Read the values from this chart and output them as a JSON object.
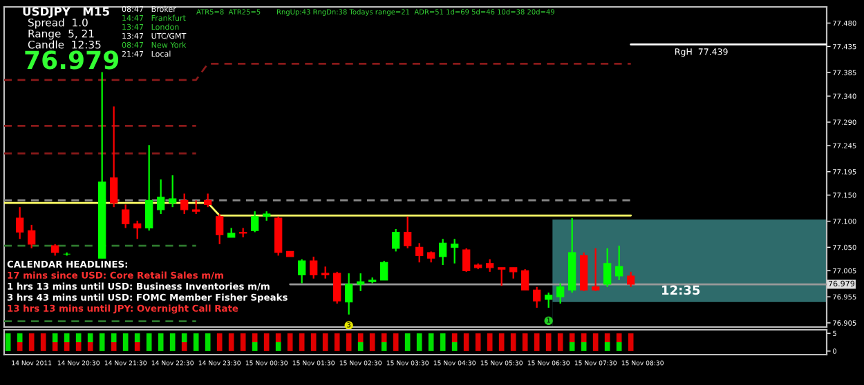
{
  "chart_data": [
    {
      "type": "candlestick",
      "x": [
        "2011-11-14T19:15",
        "2011-11-14T19:30",
        "2011-11-14T20:00",
        "2011-11-14T20:15",
        "2011-11-14T21:00",
        "2011-11-14T21:15",
        "2011-11-14T21:30",
        "2011-11-14T21:45",
        "2011-11-14T22:00",
        "2011-11-14T22:15",
        "2011-11-14T22:30",
        "2011-11-14T22:45",
        "2011-11-14T23:00",
        "2011-11-14T23:15",
        "2011-11-14T23:30",
        "2011-11-14T23:45",
        "2011-11-15T00:00",
        "2011-11-15T00:15",
        "2011-11-15T00:30",
        "2011-11-15T00:45",
        "2011-11-15T01:00",
        "2011-11-15T01:15",
        "2011-11-15T01:30",
        "2011-11-15T01:45",
        "2011-11-15T02:00",
        "2011-11-15T02:15",
        "2011-11-15T02:30",
        "2011-11-15T02:45",
        "2011-11-15T03:00",
        "2011-11-15T03:15",
        "2011-11-15T03:30",
        "2011-11-15T03:45",
        "2011-11-15T04:00",
        "2011-11-15T04:15",
        "2011-11-15T04:30",
        "2011-11-15T04:45",
        "2011-11-15T05:00",
        "2011-11-15T05:15",
        "2011-11-15T05:30",
        "2011-11-15T05:45",
        "2011-11-15T06:00",
        "2011-11-15T06:15",
        "2011-11-15T06:30",
        "2011-11-15T06:45",
        "2011-11-15T07:00",
        "2011-11-15T07:15",
        "2011-11-15T07:30",
        "2011-11-15T07:45",
        "2011-11-15T08:00",
        "2011-11-15T08:15"
      ],
      "ohlc": [
        [
          77.106,
          77.127,
          77.066,
          77.079
        ],
        [
          77.082,
          77.093,
          77.048,
          77.056
        ],
        [
          77.053,
          77.056,
          77.034,
          77.04
        ],
        [
          77.037,
          77.04,
          77.034,
          77.037
        ],
        [
          77.029,
          77.386,
          77.029,
          77.175
        ],
        [
          77.183,
          77.32,
          77.127,
          77.135
        ],
        [
          77.122,
          77.132,
          77.087,
          77.095
        ],
        [
          77.095,
          77.101,
          77.066,
          77.087
        ],
        [
          77.087,
          77.246,
          77.082,
          77.14
        ],
        [
          77.122,
          77.18,
          77.114,
          77.146
        ],
        [
          77.135,
          77.188,
          77.127,
          77.143
        ],
        [
          77.14,
          77.153,
          77.114,
          77.122
        ],
        [
          77.122,
          77.14,
          77.114,
          77.119
        ],
        [
          77.14,
          77.153,
          77.127,
          77.132
        ],
        [
          77.109,
          77.114,
          77.056,
          77.074
        ],
        [
          77.069,
          77.087,
          77.069,
          77.077
        ],
        [
          77.079,
          77.087,
          77.069,
          77.077
        ],
        [
          77.082,
          77.119,
          77.079,
          77.109
        ],
        [
          77.109,
          77.119,
          77.101,
          77.114
        ],
        [
          77.106,
          77.109,
          77.034,
          77.04
        ],
        [
          77.042,
          77.042,
          77.032,
          77.032
        ],
        [
          76.997,
          77.027,
          76.981,
          77.024
        ],
        [
          77.024,
          77.032,
          76.99,
          76.997
        ],
        [
          77.0,
          77.013,
          76.99,
          76.997
        ],
        [
          77.0,
          77.003,
          76.942,
          76.947
        ],
        [
          76.945,
          77.0,
          76.921,
          76.979
        ],
        [
          76.979,
          77.0,
          76.966,
          76.984
        ],
        [
          76.984,
          76.992,
          76.981,
          76.987
        ],
        [
          76.987,
          77.024,
          76.987,
          77.021
        ],
        [
          77.048,
          77.085,
          77.042,
          77.079
        ],
        [
          77.079,
          77.109,
          77.048,
          77.053
        ],
        [
          77.05,
          77.058,
          77.021,
          77.034
        ],
        [
          77.04,
          77.042,
          77.021,
          77.029
        ],
        [
          77.032,
          77.066,
          77.016,
          77.058
        ],
        [
          77.05,
          77.066,
          77.019,
          77.056
        ],
        [
          77.045,
          77.048,
          77.003,
          77.005
        ],
        [
          77.016,
          77.019,
          77.008,
          77.011
        ],
        [
          77.019,
          77.027,
          77.003,
          77.011
        ],
        [
          77.011,
          77.011,
          76.976,
          77.008
        ],
        [
          77.011,
          77.011,
          76.99,
          77.003
        ],
        [
          77.005,
          77.008,
          76.968,
          76.968
        ],
        [
          76.968,
          76.974,
          76.934,
          76.947
        ],
        [
          76.95,
          76.963,
          76.934,
          76.958
        ],
        [
          76.955,
          76.981,
          76.942,
          76.974
        ],
        [
          76.968,
          77.106,
          76.963,
          77.04
        ],
        [
          77.034,
          77.04,
          76.966,
          76.968
        ],
        [
          76.974,
          77.048,
          76.966,
          76.968
        ],
        [
          76.979,
          77.048,
          76.974,
          77.019
        ],
        [
          76.995,
          77.053,
          76.987,
          77.013
        ],
        [
          76.995,
          77.003,
          76.974,
          76.979
        ]
      ],
      "series": [
        {
          "type": "area",
          "color": "#2e6b6b",
          "x": [
            "2011-11-15T06:35",
            "2011-11-15T12:25"
          ],
          "values": [
            77.103,
            77.103
          ]
        },
        {
          "type": "area",
          "color": "#000000",
          "x": [
            "2011-11-15T06:35",
            "2011-11-15T12:25"
          ],
          "values": [
            76.945,
            76.945
          ]
        },
        {
          "type": "line",
          "color": "#8a8a8a",
          "line_style": "dashed",
          "x": [
            "2011-11-14T18:55",
            "2011-11-15T08:15"
          ],
          "values": [
            77.14,
            77.14
          ]
        },
        {
          "type": "line",
          "color": "#ffff66",
          "line_style": "solid",
          "x": [
            "2011-11-14T18:55",
            "2011-11-14T23:15",
            "2011-11-14T23:30",
            "2011-11-15T08:15"
          ],
          "values": [
            77.135,
            77.135,
            77.111,
            77.111
          ]
        },
        {
          "type": "line",
          "color": "#8b1a1a",
          "line_style": "dashed",
          "x": [
            "2011-11-14T18:55",
            "2011-11-14T23:00",
            "2011-11-14T23:15",
            "2011-11-15T08:15"
          ],
          "values": [
            77.371,
            77.371,
            77.402,
            77.402
          ]
        },
        {
          "type": "line",
          "color": "#8b1a1a",
          "line_style": "dashed",
          "x": [
            "2011-11-14T18:55",
            "2011-11-14T23:00"
          ],
          "values": [
            77.283,
            77.283
          ]
        },
        {
          "type": "line",
          "color": "#8b1a1a",
          "line_style": "dashed",
          "x": [
            "2011-11-14T18:55",
            "2011-11-14T23:00"
          ],
          "values": [
            77.23,
            77.23
          ]
        },
        {
          "type": "line",
          "color": "#2f7a2f",
          "line_style": "dashed",
          "x": [
            "2011-11-14T18:55",
            "2011-11-14T23:00"
          ],
          "values": [
            77.053,
            77.053
          ]
        },
        {
          "type": "line",
          "color": "#2f7a2f",
          "line_style": "dashed",
          "x": [
            "2011-11-14T18:55",
            "2011-11-14T23:00"
          ],
          "values": [
            76.908,
            76.908
          ]
        },
        {
          "type": "line",
          "color": "#9a9a9a",
          "line_style": "solid",
          "x": [
            "2011-11-15T01:00",
            "2011-11-15T12:25"
          ],
          "values": [
            76.979,
            76.979
          ]
        },
        {
          "type": "line",
          "color": "#ffffff",
          "line_style": "solid",
          "x": [
            "2011-11-15T08:15",
            "2011-11-15T12:25"
          ],
          "values": [
            77.439,
            77.439
          ]
        }
      ],
      "xlim": [
        "2011-11-14T18:55",
        "2011-11-15T12:25"
      ],
      "ylim": [
        76.897,
        77.511
      ],
      "yticks": [
        {
          "value": 77.48,
          "label": "77.480"
        },
        {
          "value": 77.435,
          "label": "77.435"
        },
        {
          "value": 77.385,
          "label": "77.385"
        },
        {
          "value": 77.34,
          "label": "77.340"
        },
        {
          "value": 77.29,
          "label": "77.290"
        },
        {
          "value": 77.245,
          "label": "77.245"
        },
        {
          "value": 77.195,
          "label": "77.195"
        },
        {
          "value": 77.15,
          "label": "77.150"
        },
        {
          "value": 77.1,
          "label": "77.100"
        },
        {
          "value": 77.05,
          "label": "77.050"
        },
        {
          "value": 77.005,
          "label": "77.005"
        },
        {
          "value": 76.955,
          "label": "76.955"
        },
        {
          "value": 76.905,
          "label": "76.905"
        }
      ],
      "tick_labels": "y",
      "annotations": [
        "USDJPY   M15",
        "Spread  1.0",
        "Range  5, 21",
        "Candle  12:35",
        "76.979",
        "08:47   Broker",
        "14:47   Frankfurt",
        "13:47   London",
        "13:47   UTC/GMT",
        "08:47   New York",
        "21:47   Local",
        "ATR5=8  ATR25=5",
        "RngUp:43 RngDn:38 Todays range=21  ADR=51 1d=69 5d=46 10d=38 20d=49",
        "CALENDAR HEADLINES:",
        "17 mins since USD: Core Retail Sales m/m",
        "1 hrs 13 mins until USD: Business Inventories m/m",
        "3 hrs 43 mins until USD: FOMC Member Fisher Speaks",
        "13 hrs 13 mins until JPY: Overnight Call Rate",
        "12:35",
        {
          "text": "RgH  77.439",
          "x": "2011-11-15T09:45",
          "y": 77.439
        },
        {
          "text": "3",
          "x": "2011-11-15T02:15",
          "y": 76.921
        },
        {
          "text": "1",
          "x": "2011-11-15T06:30",
          "y": 76.93
        },
        "76.979"
      ]
    },
    {
      "type": "bar",
      "stacked": true,
      "x": [
        "2011-11-14T19:00",
        "2011-11-14T19:15",
        "2011-11-14T19:30",
        "2011-11-14T19:45",
        "2011-11-14T20:00",
        "2011-11-14T20:15",
        "2011-11-14T20:30",
        "2011-11-14T20:45",
        "2011-11-14T21:00",
        "2011-11-14T21:15",
        "2011-11-14T21:30",
        "2011-11-14T21:45",
        "2011-11-14T22:00",
        "2011-11-14T22:15",
        "2011-11-14T22:30",
        "2011-11-14T22:45",
        "2011-11-14T23:00",
        "2011-11-14T23:15",
        "2011-11-14T23:30",
        "2011-11-14T23:45",
        "2011-11-15T00:00",
        "2011-11-15T00:15",
        "2011-11-15T00:30",
        "2011-11-15T00:45",
        "2011-11-15T01:00",
        "2011-11-15T01:15",
        "2011-11-15T01:30",
        "2011-11-15T01:45",
        "2011-11-15T02:00",
        "2011-11-15T02:15",
        "2011-11-15T02:30",
        "2011-11-15T02:45",
        "2011-11-15T03:00",
        "2011-11-15T03:15",
        "2011-11-15T03:30",
        "2011-11-15T03:45",
        "2011-11-15T04:00",
        "2011-11-15T04:15",
        "2011-11-15T04:30",
        "2011-11-15T04:45",
        "2011-11-15T05:00",
        "2011-11-15T05:15",
        "2011-11-15T05:30",
        "2011-11-15T05:45",
        "2011-11-15T06:00",
        "2011-11-15T06:15",
        "2011-11-15T06:30",
        "2011-11-15T06:45",
        "2011-11-15T07:00",
        "2011-11-15T07:15",
        "2011-11-15T07:30",
        "2011-11-15T07:45",
        "2011-11-15T08:00",
        "2011-11-15T08:15"
      ],
      "series": [
        {
          "values": [
            2.5,
            2.5,
            2.5,
            2.5,
            2.5,
            2.5,
            2.5,
            2.5,
            2.5,
            2.5,
            2.5,
            2.5,
            2.5,
            2.5,
            2.5,
            2.5,
            2.5,
            2.5,
            2.5,
            2.5,
            2.5,
            2.5,
            2.5,
            2.5,
            2.5,
            2.5,
            2.5,
            2.5,
            2.5,
            2.5,
            2.5,
            2.5,
            2.5,
            2.5,
            2.5,
            2.5,
            2.5,
            2.5,
            2.5,
            2.5,
            2.5,
            2.5,
            2.5,
            2.5,
            2.5,
            2.5,
            2.5,
            2.5,
            2.5,
            2.5,
            2.5,
            2.5,
            2.5,
            2.5
          ],
          "colors": [
            "#00e000",
            "#e00000",
            "#e00000",
            "#e00000",
            "#e00000",
            "#e00000",
            "#e00000",
            "#e00000",
            "#00e000",
            "#e00000",
            "#00e000",
            "#e00000",
            "#00e000",
            "#00e000",
            "#00e000",
            "#e00000",
            "#00e000",
            "#00e000",
            "#e00000",
            "#e00000",
            "#e00000",
            "#00e000",
            "#e00000",
            "#00e000",
            "#e00000",
            "#e00000",
            "#e00000",
            "#e00000",
            "#e00000",
            "#e00000",
            "#00e000",
            "#e00000",
            "#00e000",
            "#e00000",
            "#00e000",
            "#00e000",
            "#00e000",
            "#00e000",
            "#00e000",
            "#e00000",
            "#e00000",
            "#e00000",
            "#e00000",
            "#e00000",
            "#e00000",
            "#e00000",
            "#e00000",
            "#e00000",
            "#00e000",
            "#00e000",
            "#e00000",
            "#00e000",
            "#00e000",
            "#e00000"
          ]
        },
        {
          "values": [
            2.5,
            2.5,
            2.5,
            2.5,
            2.5,
            2.5,
            2.5,
            2.5,
            2.5,
            2.5,
            2.5,
            2.5,
            2.5,
            2.5,
            2.5,
            2.5,
            2.5,
            2.5,
            2.5,
            2.5,
            2.5,
            2.5,
            2.5,
            2.5,
            2.5,
            2.5,
            2.5,
            2.5,
            2.5,
            2.5,
            2.5,
            2.5,
            2.5,
            2.5,
            2.5,
            2.5,
            2.5,
            2.5,
            2.5,
            2.5,
            2.5,
            2.5,
            2.5,
            2.5,
            2.5,
            2.5,
            2.5,
            2.5,
            2.5,
            2.5,
            2.5,
            2.5,
            2.5,
            2.5
          ],
          "colors": [
            "#00e000",
            "#00e000",
            "#e00000",
            "#e00000",
            "#00e000",
            "#00e000",
            "#00e000",
            "#00e000",
            "#00e000",
            "#00e000",
            "#00e000",
            "#00e000",
            "#00e000",
            "#00e000",
            "#00e000",
            "#00e000",
            "#00e000",
            "#00e000",
            "#e00000",
            "#e00000",
            "#e00000",
            "#e00000",
            "#e00000",
            "#e00000",
            "#e00000",
            "#e00000",
            "#e00000",
            "#e00000",
            "#e00000",
            "#e00000",
            "#e00000",
            "#e00000",
            "#e00000",
            "#e00000",
            "#00e000",
            "#00e000",
            "#00e000",
            "#00e000",
            "#e00000",
            "#e00000",
            "#e00000",
            "#e00000",
            "#e00000",
            "#e00000",
            "#e00000",
            "#e00000",
            "#e00000",
            "#e00000",
            "#e00000",
            "#e00000",
            "#e00000",
            "#e00000",
            "#e00000",
            "#e00000"
          ]
        }
      ],
      "xlim": [
        "2011-11-14T18:55",
        "2011-11-15T12:25"
      ],
      "xticks": [
        {
          "value": "2011-11-14T19:30",
          "label": "14 Nov 2011"
        },
        {
          "value": "2011-11-14T20:30",
          "label": "14 Nov 20:30"
        },
        {
          "value": "2011-11-14T21:30",
          "label": "14 Nov 21:30"
        },
        {
          "value": "2011-11-14T22:30",
          "label": "14 Nov 22:30"
        },
        {
          "value": "2011-11-14T23:30",
          "label": "14 Nov 23:30"
        },
        {
          "value": "2011-11-15T00:30",
          "label": "15 Nov 00:30"
        },
        {
          "value": "2011-11-15T01:30",
          "label": "15 Nov 01:30"
        },
        {
          "value": "2011-11-15T02:30",
          "label": "15 Nov 02:30"
        },
        {
          "value": "2011-11-15T03:30",
          "label": "15 Nov 03:30"
        },
        {
          "value": "2011-11-15T04:30",
          "label": "15 Nov 04:30"
        },
        {
          "value": "2011-11-15T05:30",
          "label": "15 Nov 05:30"
        },
        {
          "value": "2011-11-15T06:30",
          "label": "15 Nov 06:30"
        },
        {
          "value": "2011-11-15T07:30",
          "label": "15 Nov 07:30"
        },
        {
          "value": "2011-11-15T08:30",
          "label": "15 Nov 08:30"
        }
      ],
      "ylim": [
        -1,
        6
      ],
      "yticks": [
        0,
        5
      ]
    }
  ]
}
